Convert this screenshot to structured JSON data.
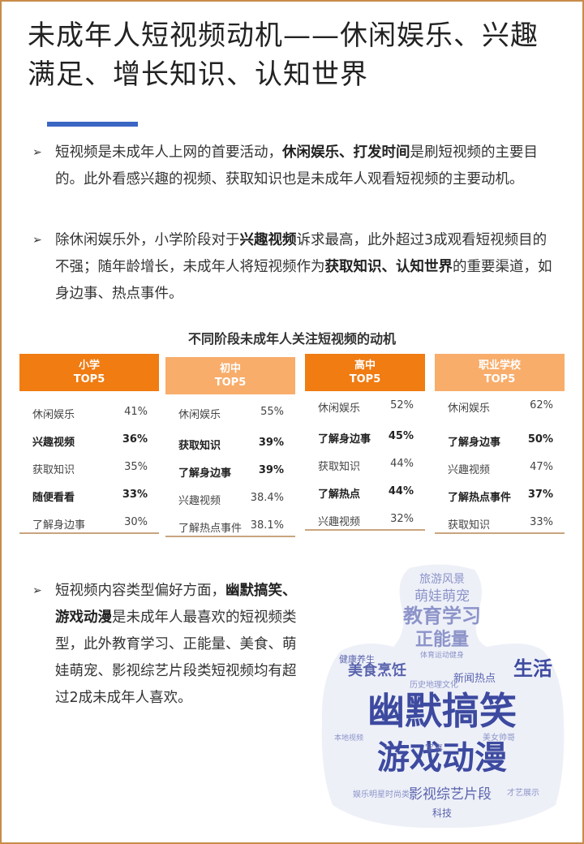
{
  "page": {
    "title": "未成年人短视频动机——休闲娱乐、兴趣满足、增长知识、认知世界"
  },
  "bullets": {
    "b1": {
      "arrow": "➢",
      "p1": "短视频是未成年人上网的首要活动，",
      "p2": "休闲娱乐、打发时间",
      "p3": "是刷短视频的主要目的。此外看感兴趣的视频、获取知识也是未成年人观看短视频的主要动机。"
    },
    "b2": {
      "arrow": "➢",
      "p1": "除休闲娱乐外，小学阶段对于",
      "p2": "兴趣视频",
      "p3": "诉求最高，此外超过3成观看短视频目的不强；随年龄增长，未成年人将短视频作为",
      "p4": "获取知识、认知世界",
      "p5": "的重要渠道，如身边事、热点事件。"
    },
    "b3": {
      "arrow": "➢",
      "p1": "短视频内容类型偏好方面，",
      "p2": "幽默搞笑、游戏动漫",
      "p3": "是未成年人最喜欢的短视频类型，此外教育学习、正能量、美食、萌娃萌宠、影视综艺片段类短视频均有超过2成未成年人喜欢。"
    }
  },
  "table": {
    "title": "不同阶段未成年人关注短视频的动机",
    "columns": [
      {
        "stage": "小学",
        "top": "TOP5",
        "style": "dark",
        "rows": [
          {
            "label": "休闲娱乐",
            "value": "41%",
            "bold": false
          },
          {
            "label": "兴趣视频",
            "value": "36%",
            "bold": true
          },
          {
            "label": "获取知识",
            "value": "35%",
            "bold": false
          },
          {
            "label": "随便看看",
            "value": "33%",
            "bold": true
          },
          {
            "label": "了解身边事",
            "value": "30%",
            "bold": false
          }
        ]
      },
      {
        "stage": "初中",
        "top": "TOP5",
        "style": "light",
        "rows": [
          {
            "label": "休闲娱乐",
            "value": "55%",
            "bold": false
          },
          {
            "label": "获取知识",
            "value": "39%",
            "bold": true
          },
          {
            "label": "了解身边事",
            "value": "39%",
            "bold": true
          },
          {
            "label": "兴趣视频",
            "value": "38.4%",
            "bold": false
          },
          {
            "label": "了解热点事件",
            "value": "38.1%",
            "bold": false
          }
        ]
      },
      {
        "stage": "高中",
        "top": "TOP5",
        "style": "dark",
        "rows": [
          {
            "label": "休闲娱乐",
            "value": "52%",
            "bold": false
          },
          {
            "label": "了解身边事",
            "value": "45%",
            "bold": true
          },
          {
            "label": "获取知识",
            "value": "44%",
            "bold": false
          },
          {
            "label": "了解热点",
            "value": "44%",
            "bold": true
          },
          {
            "label": "兴趣视频",
            "value": "32%",
            "bold": false
          }
        ]
      },
      {
        "stage": "职业学校",
        "top": "TOP5",
        "style": "light",
        "rows": [
          {
            "label": "休闲娱乐",
            "value": "62%",
            "bold": false
          },
          {
            "label": "了解身边事",
            "value": "50%",
            "bold": true
          },
          {
            "label": "兴趣视频",
            "value": "47%",
            "bold": false
          },
          {
            "label": "了解热点事件",
            "value": "37%",
            "bold": true
          },
          {
            "label": "获取知识",
            "value": "33%",
            "bold": false
          }
        ]
      }
    ]
  },
  "wordcloud": {
    "words": [
      "幽默搞笑",
      "游戏动漫",
      "教育学习",
      "正能量",
      "萌娃萌宠",
      "旅游风景",
      "生活",
      "美食烹饪",
      "影视综艺片段",
      "新闻热点",
      "科技",
      "军事",
      "健康养生",
      "历史地理文化",
      "才艺展示",
      "体育运动健身",
      "娱乐明星时尚类",
      "美女帅哥",
      "本地视频"
    ]
  },
  "colors": {
    "accent_blue": "#3a66c4",
    "orange_dark": "#f07c12",
    "orange_light": "#f8ad6b",
    "cloud_blue": "#3d4aa0",
    "cloud_light": "#8c94c9"
  }
}
